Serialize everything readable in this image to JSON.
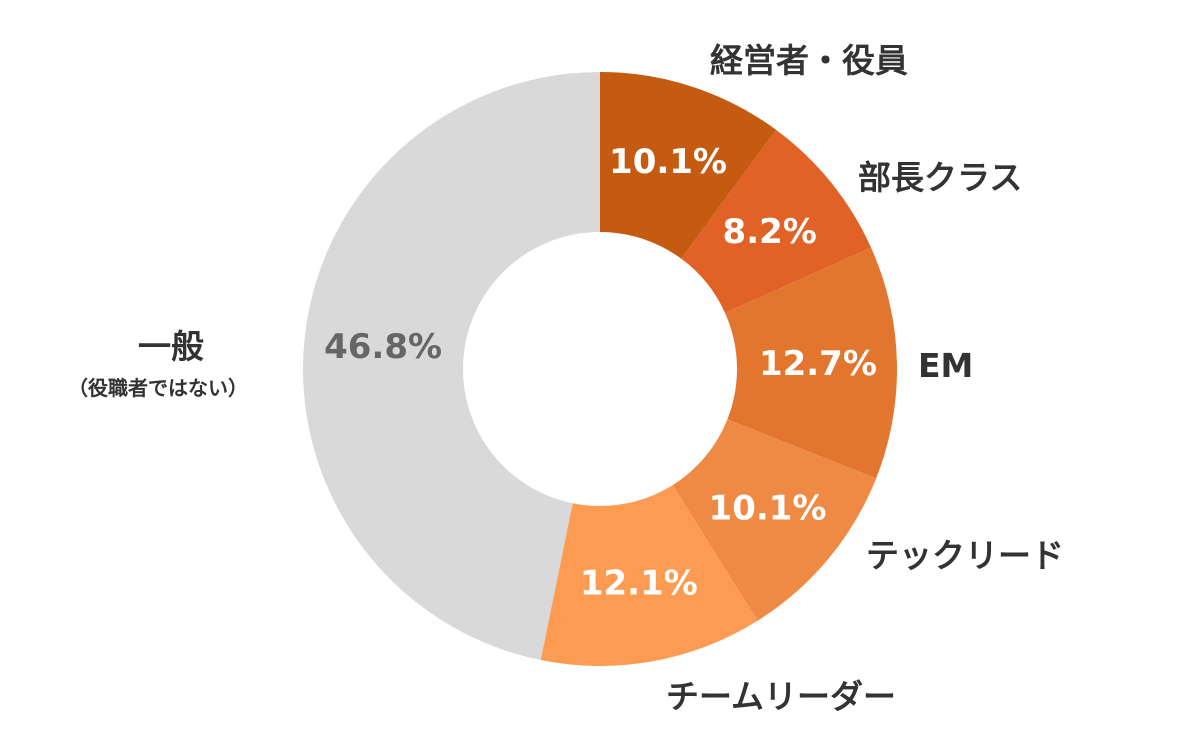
{
  "chart_data": {
    "type": "pie",
    "variant": "donut",
    "start_angle_deg": 0,
    "direction": "clockwise",
    "slices": [
      {
        "label": "経営者・役員",
        "value": 10.1,
        "display": "10.1%",
        "color": "#C55A11",
        "text_color": "#FFFFFF"
      },
      {
        "label": "部長クラス",
        "value": 8.2,
        "display": "8.2%",
        "color": "#E06226",
        "text_color": "#FFFFFF"
      },
      {
        "label": "EM",
        "value": 12.7,
        "display": "12.7%",
        "color": "#E2762E",
        "text_color": "#FFFFFF"
      },
      {
        "label": "テックリード",
        "value": 10.1,
        "display": "10.1%",
        "color": "#EE8A44",
        "text_color": "#FFFFFF"
      },
      {
        "label": "チームリーダー",
        "value": 12.1,
        "display": "12.1%",
        "color": "#FD9B52",
        "text_color": "#FFFFFF"
      },
      {
        "label": "一般",
        "sublabel": "（役職者ではない）",
        "value": 46.8,
        "display": "46.8%",
        "color": "#D9D9D9",
        "text_color": "#666666"
      }
    ]
  }
}
